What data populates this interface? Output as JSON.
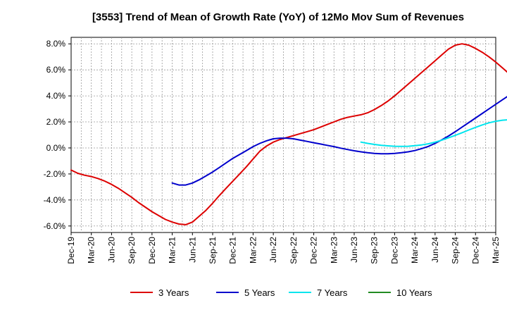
{
  "chart_data": {
    "type": "line",
    "title": "[3553]  Trend of Mean of Growth Rate (YoY) of 12Mo Mov Sum of Revenues",
    "xlabel": "",
    "ylabel": "",
    "ylim": [
      -6.5,
      8.5
    ],
    "y_ticks": [
      -6.0,
      -4.0,
      -2.0,
      0.0,
      2.0,
      4.0,
      6.0,
      8.0
    ],
    "y_tick_labels": [
      "-6.0%",
      "-4.0%",
      "-2.0%",
      "0.0%",
      "2.0%",
      "4.0%",
      "6.0%",
      "8.0%"
    ],
    "x_tick_labels": [
      "Dec-19",
      "Mar-20",
      "Jun-20",
      "Sep-20",
      "Dec-20",
      "Mar-21",
      "Jun-21",
      "Sep-21",
      "Dec-21",
      "Mar-22",
      "Jun-22",
      "Sep-22",
      "Dec-22",
      "Mar-23",
      "Jun-23",
      "Sep-23",
      "Dec-23",
      "Mar-24",
      "Jun-24",
      "Sep-24",
      "Dec-24",
      "Mar-25"
    ],
    "grid": true,
    "legend_position": "bottom",
    "series": [
      {
        "name": "3 Years",
        "color": "#dd0000",
        "start_index": 0,
        "values": [
          -1.7,
          -1.95,
          -2.1,
          -2.2,
          -2.35,
          -2.55,
          -2.8,
          -3.1,
          -3.45,
          -3.8,
          -4.2,
          -4.55,
          -4.9,
          -5.2,
          -5.5,
          -5.7,
          -5.85,
          -5.9,
          -5.7,
          -5.25,
          -4.8,
          -4.25,
          -3.65,
          -3.1,
          -2.55,
          -2.0,
          -1.45,
          -0.85,
          -0.25,
          0.15,
          0.45,
          0.65,
          0.8,
          0.95,
          1.1,
          1.25,
          1.4,
          1.6,
          1.8,
          2.0,
          2.2,
          2.35,
          2.45,
          2.55,
          2.7,
          2.95,
          3.25,
          3.6,
          4.0,
          4.45,
          4.9,
          5.35,
          5.8,
          6.25,
          6.7,
          7.15,
          7.6,
          7.9,
          8.0,
          7.9,
          7.65,
          7.35,
          7.0,
          6.6,
          6.15,
          5.7
        ]
      },
      {
        "name": "5 Years",
        "color": "#0000cc",
        "start_index": 15,
        "values": [
          -2.7,
          -2.85,
          -2.85,
          -2.7,
          -2.45,
          -2.15,
          -1.85,
          -1.5,
          -1.15,
          -0.8,
          -0.5,
          -0.2,
          0.1,
          0.35,
          0.55,
          0.7,
          0.75,
          0.75,
          0.7,
          0.6,
          0.5,
          0.4,
          0.3,
          0.2,
          0.1,
          -0.02,
          -0.12,
          -0.22,
          -0.3,
          -0.37,
          -0.42,
          -0.45,
          -0.45,
          -0.42,
          -0.37,
          -0.3,
          -0.2,
          -0.05,
          0.12,
          0.35,
          0.62,
          0.92,
          1.25,
          1.6,
          1.95,
          2.3,
          2.65,
          3.0,
          3.35,
          3.7,
          4.05
        ]
      },
      {
        "name": "7 Years",
        "color": "#00e5ee",
        "start_index": 43,
        "values": [
          0.45,
          0.35,
          0.27,
          0.2,
          0.16,
          0.13,
          0.12,
          0.13,
          0.17,
          0.23,
          0.32,
          0.45,
          0.6,
          0.78,
          0.97,
          1.17,
          1.38,
          1.58,
          1.77,
          1.93,
          2.05,
          2.13,
          2.17,
          2.2
        ]
      },
      {
        "name": "10 Years",
        "color": "#228b22",
        "start_index": 0,
        "values": []
      }
    ]
  }
}
